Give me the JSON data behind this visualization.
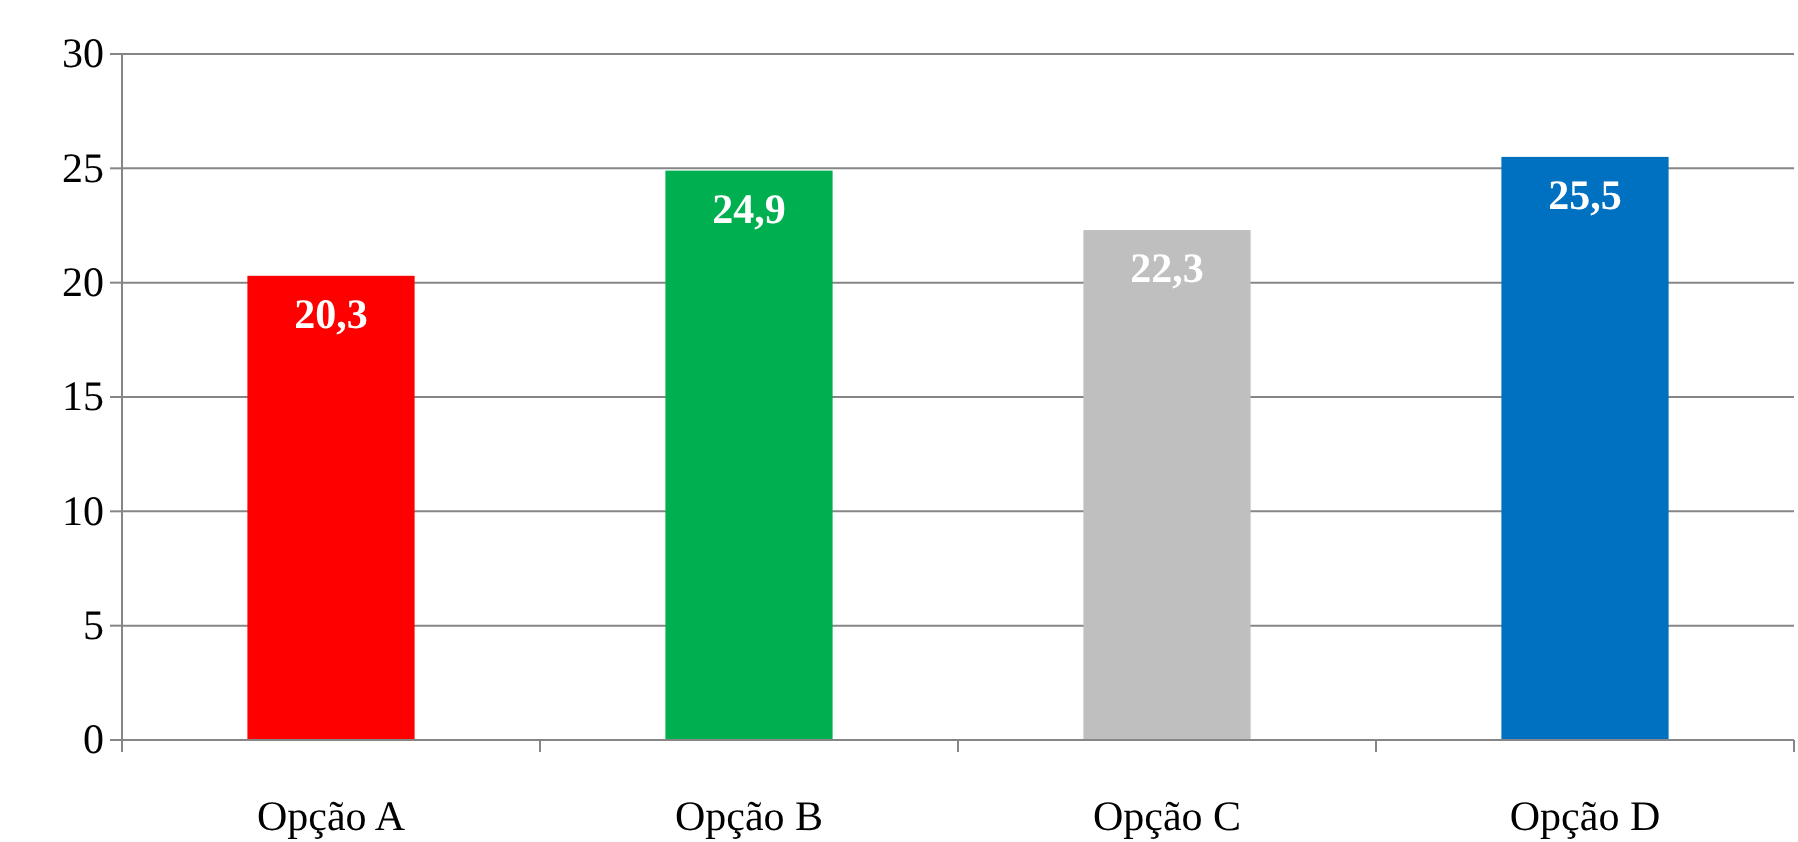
{
  "chart_data": {
    "type": "bar",
    "categories": [
      "Opção A",
      "Opção B",
      "Opção C",
      "Opção D"
    ],
    "values": [
      20.3,
      24.9,
      22.3,
      25.5
    ],
    "colors": [
      "#ff0000",
      "#00b050",
      "#bfbfbf",
      "#0070c0"
    ],
    "value_labels": [
      "20,3",
      "24,9",
      "22,3",
      "25,5"
    ],
    "ylim": [
      0,
      30
    ],
    "yticks": [
      0,
      5,
      10,
      15,
      20,
      25,
      30
    ],
    "grid": "y"
  }
}
